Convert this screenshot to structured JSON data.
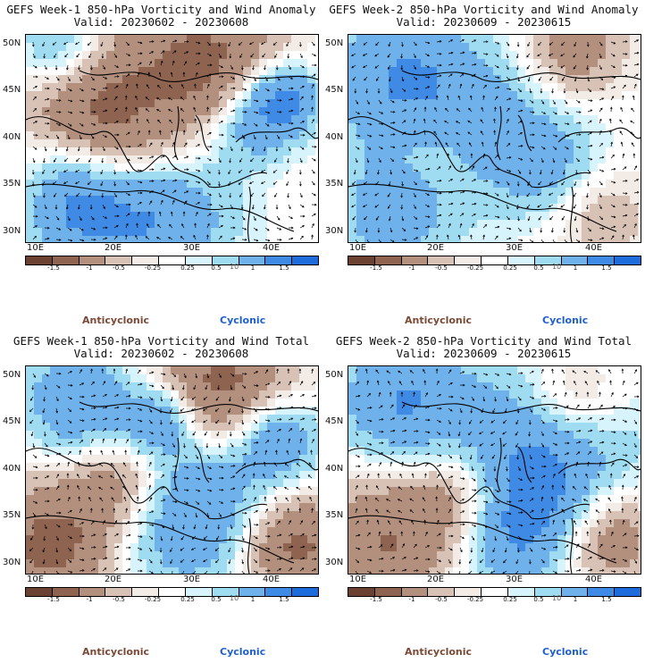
{
  "panels": [
    {
      "title_line1": "GEFS Week-1 850-hPa Vorticity and Wind Anomaly",
      "title_line2": "Valid: 20230602 - 20230608"
    },
    {
      "title_line1": "GEFS Week-2 850-hPa Vorticity and Wind Anomaly",
      "title_line2": "Valid: 20230609 - 20230615"
    },
    {
      "title_line1": "GEFS Week-1 850-hPa Vorticity and Wind Total",
      "title_line2": "Valid: 20230602 - 20230608"
    },
    {
      "title_line1": "GEFS Week-2 850-hPa Vorticity and Wind Total",
      "title_line2": "Valid: 20230609 - 20230615"
    }
  ],
  "axes": {
    "lat_labels": [
      "50N",
      "45N",
      "40N",
      "35N",
      "30N"
    ],
    "lon_labels": [
      "10E",
      "20E",
      "30E",
      "40E"
    ]
  },
  "colorbar": {
    "labels": [
      "-1.5",
      "-1",
      "-0.5",
      "-0.25",
      "0.25",
      "0.5",
      "1",
      "1.5"
    ],
    "colors": [
      "#6b4232",
      "#8e6350",
      "#b38f7d",
      "#d8c2b6",
      "#f3ebe6",
      "#ffffff",
      "#d7f3fb",
      "#9fdcf2",
      "#6fb1ea",
      "#3f8ae4",
      "#1e6bdc"
    ],
    "scale_label": "10"
  },
  "legend": {
    "anticyclonic": "Anticyclonic",
    "cyclonic": "Cyclonic"
  }
}
